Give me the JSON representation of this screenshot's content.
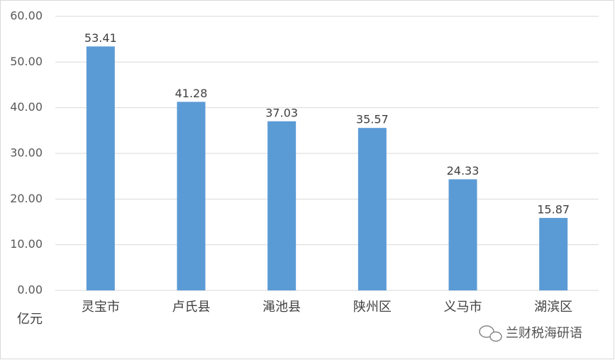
{
  "chart_data": {
    "type": "bar",
    "y_label": "亿元",
    "watermark": "兰财税海研语",
    "categories": [
      "灵宝市",
      "卢氏县",
      "渑池县",
      "陕州区",
      "义马市",
      "湖滨区"
    ],
    "values": [
      53.41,
      41.28,
      37.03,
      35.57,
      24.33,
      15.87
    ],
    "value_labels": [
      "53.41",
      "41.28",
      "37.03",
      "35.57",
      "24.33",
      "15.87"
    ],
    "color": "#5b9bd5",
    "ylim": [
      0,
      60
    ],
    "yticks": [
      {
        "value": 0,
        "label": "0.00"
      },
      {
        "value": 10,
        "label": "10.00"
      },
      {
        "value": 20,
        "label": "20.00"
      },
      {
        "value": 30,
        "label": "30.00"
      },
      {
        "value": 40,
        "label": "40.00"
      },
      {
        "value": 50,
        "label": "50.00"
      },
      {
        "value": 60,
        "label": "60.00"
      }
    ],
    "grid": true
  }
}
